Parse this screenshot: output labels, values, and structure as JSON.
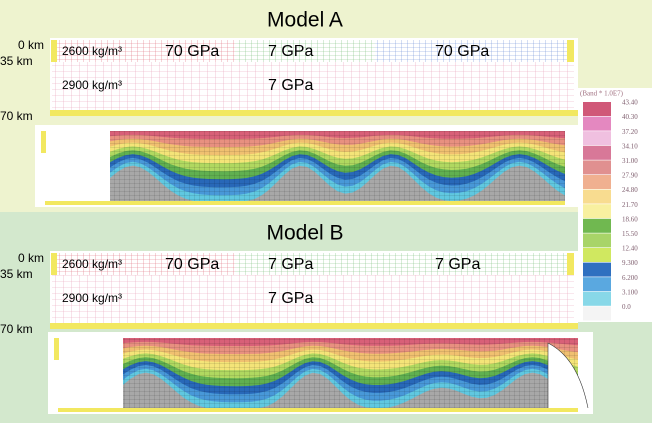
{
  "colorbar": {
    "title": "(Band * 1.0E7)",
    "labels": [
      "43.40",
      "40.30",
      "37.20",
      "34.10",
      "31.00",
      "27.90",
      "24.80",
      "21.70",
      "18.60",
      "15.50",
      "12.40",
      "9.300",
      "6.200",
      "3.100",
      "0.0"
    ]
  },
  "panels": [
    {
      "title": "Model A",
      "depths": [
        "0 km",
        "35 km",
        "70 km"
      ],
      "upper_density": "2600 kg/m³",
      "upper_moduli": [
        "70 GPa",
        "7 GPa",
        "70 GPa"
      ],
      "lower_density": "2900 kg/m³",
      "lower_modulus": "7 GPa"
    },
    {
      "title": "Model B",
      "depths": [
        "0 km",
        "35 km",
        "70 km"
      ],
      "upper_density": "2600 kg/m³",
      "upper_moduli": [
        "70 GPa",
        "7 GPa",
        "7 GPa"
      ],
      "lower_density": "2900 kg/m³",
      "lower_modulus": "7 GPa"
    }
  ]
}
